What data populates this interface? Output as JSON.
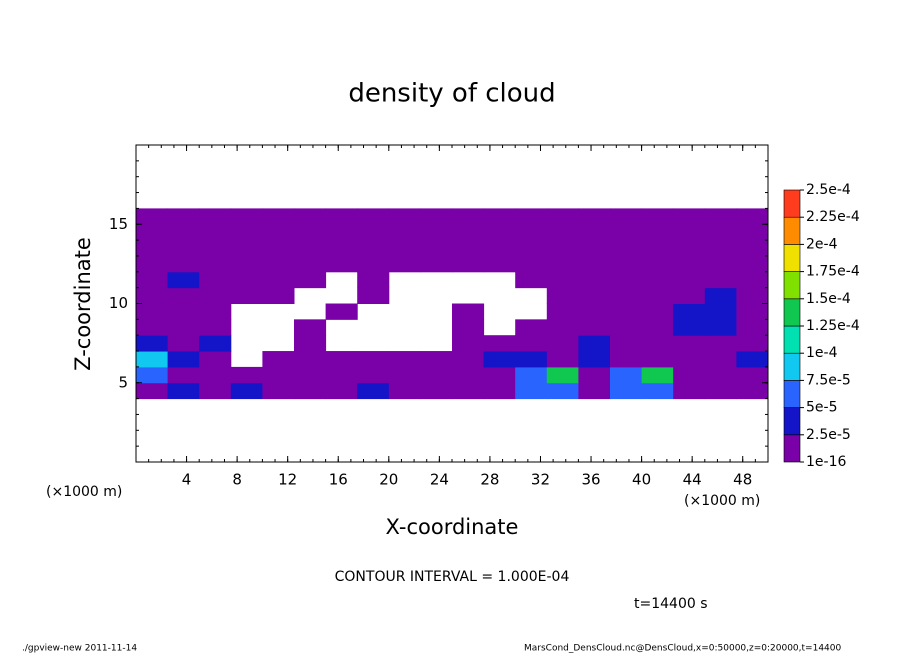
{
  "chart_data": {
    "type": "contour",
    "title": "density of cloud",
    "xlabel": "X-coordinate",
    "ylabel": "Z-coordinate",
    "x_unit": "(×1000 m)",
    "y_unit": "(×1000 m)",
    "contour_interval": "CONTOUR INTERVAL = 1.000E-04",
    "time": "t=14400 s",
    "footer_left": "./gpview-new   2011-11-14",
    "footer_right": "MarsCond_DensCloud.nc@DensCloud,x=0:50000,z=0:20000,t=14400",
    "xlim": [
      0,
      50
    ],
    "ylim": [
      0,
      20
    ],
    "xticks": [
      4,
      8,
      12,
      16,
      20,
      24,
      28,
      32,
      36,
      40,
      44,
      48
    ],
    "yticks": [
      5,
      10,
      15
    ],
    "levels": [
      {
        "value": 1e-16,
        "label": "1e-16"
      },
      {
        "value": 2.5e-05,
        "label": "2.5e-5"
      },
      {
        "value": 5e-05,
        "label": "5e-5"
      },
      {
        "value": 7.5e-05,
        "label": "7.5e-5"
      },
      {
        "value": 0.0001,
        "label": "1e-4"
      },
      {
        "value": 0.000125,
        "label": "1.25e-4"
      },
      {
        "value": 0.00015,
        "label": "1.5e-4"
      },
      {
        "value": 0.000175,
        "label": "1.75e-4"
      },
      {
        "value": 0.0002,
        "label": "2e-4"
      },
      {
        "value": 0.000225,
        "label": "2.25e-4"
      },
      {
        "value": 0.00025,
        "label": "2.5e-4"
      }
    ],
    "colors": [
      "#7a00a8",
      "#1414c8",
      "#2a64ff",
      "#10c8f0",
      "#00e0b0",
      "#10c850",
      "#80e000",
      "#f0e000",
      "#ff8c00",
      "#ff3c1e"
    ],
    "x": [
      1.25,
      3.75,
      6.25,
      8.75,
      11.25,
      13.75,
      16.25,
      18.75,
      21.25,
      23.75,
      26.25,
      28.75,
      31.25,
      33.75,
      36.25,
      38.75,
      41.25,
      43.75,
      46.25,
      48.75
    ],
    "z": [
      4.5,
      5.5,
      6.5,
      7.5,
      8.5,
      9.5,
      10.5,
      11.5,
      12.5,
      13.5,
      14.5,
      15.5
    ],
    "field": [
      [
        1e-10,
        3e-05,
        1e-10,
        3e-05,
        1e-10,
        1e-10,
        1e-10,
        3e-05,
        1e-10,
        1e-10,
        1e-10,
        1e-10,
        6e-05,
        6e-05,
        1e-10,
        6e-05,
        6e-05,
        1e-10,
        1e-10,
        1e-10
      ],
      [
        6e-05,
        1e-10,
        1e-10,
        1e-10,
        1e-10,
        1e-10,
        1e-10,
        1e-10,
        1e-10,
        1e-10,
        1e-10,
        1e-10,
        6e-05,
        0.00013,
        1e-10,
        6e-05,
        0.00013,
        1e-10,
        1e-10,
        1e-10
      ],
      [
        8e-05,
        3e-05,
        1e-10,
        null,
        1e-10,
        1e-10,
        1e-10,
        1e-10,
        1e-10,
        1e-10,
        1e-10,
        3e-05,
        3e-05,
        1e-10,
        3e-05,
        1e-10,
        1e-10,
        1e-10,
        1e-10,
        3e-05
      ],
      [
        3e-05,
        1e-10,
        3e-05,
        null,
        null,
        1e-10,
        null,
        null,
        null,
        null,
        1e-10,
        1e-10,
        1e-10,
        1e-10,
        3e-05,
        1e-10,
        1e-10,
        1e-10,
        1e-10,
        1e-10
      ],
      [
        1e-10,
        1e-10,
        1e-10,
        null,
        null,
        1e-10,
        null,
        null,
        null,
        null,
        1e-10,
        null,
        1e-10,
        1e-10,
        1e-10,
        1e-10,
        1e-10,
        3e-05,
        3e-05,
        1e-10
      ],
      [
        1e-10,
        1e-10,
        1e-10,
        null,
        null,
        null,
        1e-10,
        null,
        null,
        null,
        1e-10,
        null,
        null,
        1e-10,
        1e-10,
        1e-10,
        1e-10,
        3e-05,
        3e-05,
        1e-10
      ],
      [
        1e-10,
        1e-10,
        1e-10,
        1e-10,
        1e-10,
        null,
        null,
        1e-10,
        null,
        null,
        null,
        null,
        null,
        1e-10,
        1e-10,
        1e-10,
        1e-10,
        1e-10,
        3e-05,
        1e-10
      ],
      [
        1e-10,
        3e-05,
        1e-10,
        1e-10,
        1e-10,
        1e-10,
        null,
        1e-10,
        null,
        null,
        null,
        null,
        1e-10,
        1e-10,
        1e-10,
        1e-10,
        1e-10,
        1e-10,
        1e-10,
        1e-10
      ],
      [
        1e-10,
        1e-10,
        1e-10,
        1e-10,
        1e-10,
        1e-10,
        1e-10,
        1e-10,
        1e-10,
        1e-10,
        1e-10,
        1e-10,
        1e-10,
        1e-10,
        1e-10,
        1e-10,
        1e-10,
        1e-10,
        1e-10,
        1e-10
      ],
      [
        1e-10,
        1e-10,
        1e-10,
        1e-10,
        1e-10,
        1e-10,
        1e-10,
        1e-10,
        1e-10,
        1e-10,
        1e-10,
        1e-10,
        1e-10,
        1e-10,
        1e-10,
        1e-10,
        1e-10,
        1e-10,
        1e-10,
        1e-10
      ],
      [
        1e-10,
        1e-10,
        1e-10,
        1e-10,
        1e-10,
        1e-10,
        1e-10,
        1e-10,
        1e-10,
        1e-10,
        1e-10,
        1e-10,
        1e-10,
        1e-10,
        1e-10,
        1e-10,
        1e-10,
        1e-10,
        1e-10,
        1e-10
      ],
      [
        1e-10,
        1e-10,
        1e-10,
        1e-10,
        1e-10,
        1e-10,
        1e-10,
        1e-10,
        1e-10,
        1e-10,
        1e-10,
        1e-10,
        1e-10,
        1e-10,
        1e-10,
        1e-10,
        1e-10,
        1e-10,
        1e-10,
        1e-10
      ]
    ]
  }
}
